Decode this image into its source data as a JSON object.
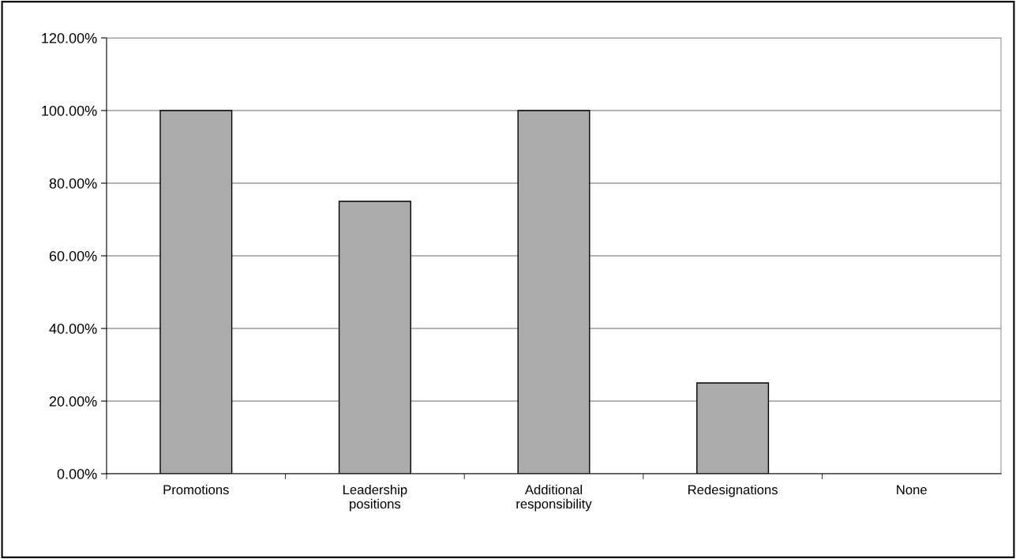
{
  "chart_data": {
    "type": "bar",
    "categories": [
      "Promotions",
      "Leadership\npositions",
      "Additional\nresponsibility",
      "Redesignations",
      "None"
    ],
    "values": [
      100,
      75,
      100,
      25,
      0
    ],
    "color": "#ababab",
    "ylim": [
      0,
      120
    ],
    "yticks": [
      {
        "value": 0,
        "label": "0.00%"
      },
      {
        "value": 20,
        "label": "20.00%"
      },
      {
        "value": 40,
        "label": "40.00%"
      },
      {
        "value": 60,
        "label": "60.00%"
      },
      {
        "value": 80,
        "label": "80.00%"
      },
      {
        "value": 100,
        "label": "100.00%"
      },
      {
        "value": 120,
        "label": "120.00%"
      }
    ],
    "grid": "y",
    "legend": false
  }
}
